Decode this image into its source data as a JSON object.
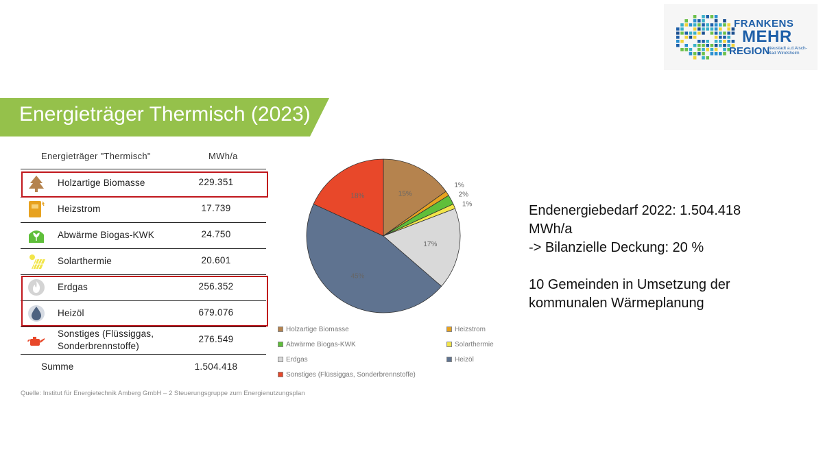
{
  "logo": {
    "line1": "FRANKENS",
    "line2": "MEHR",
    "line3": "REGION",
    "sub": "Neustadt a.d.Aisch-Bad Windsheim"
  },
  "title": "Energieträger Thermisch (2023)",
  "table": {
    "headers": [
      "Energieträger \"Thermisch\"",
      "MWh/a"
    ],
    "rows": [
      {
        "icon": "tree-icon",
        "label": "Holzartige Biomasse",
        "value": "229.351",
        "color": "#b5834e"
      },
      {
        "icon": "heating-socket-icon",
        "label": "Heizstrom",
        "value": "17.739",
        "color": "#e7a220"
      },
      {
        "icon": "biogas-plant-icon",
        "label": "Abwärme Biogas-KWK",
        "value": "24.750",
        "color": "#5fbf3a"
      },
      {
        "icon": "solar-panel-icon",
        "label": "Solarthermie",
        "value": "20.601",
        "color": "#f2e54a"
      },
      {
        "icon": "gas-flame-icon",
        "label": "Erdgas",
        "value": "256.352",
        "color": "#c8c8c8"
      },
      {
        "icon": "oil-drop-icon",
        "label": "Heizöl",
        "value": "679.076",
        "color": "#4d6280"
      },
      {
        "icon": "oil-can-icon",
        "label": "Sonstiges (Flüssiggas, Sonderbrennstoffe)",
        "value": "276.549",
        "color": "#e8482a"
      }
    ],
    "sum_label": "Summe",
    "sum_value": "1.504.418"
  },
  "source": "Quelle: Institut für Energietechnik Amberg GmbH – 2 Steuerungsgruppe zum Energienutzungsplan",
  "chart_data": {
    "type": "pie",
    "labels": [
      "Holzartige Biomasse",
      "Heizstrom",
      "Abwärme Biogas-KWK",
      "Solarthermie",
      "Erdgas",
      "Heizöl",
      "Sonstiges (Flüssiggas, Sonderbrennstoffe)"
    ],
    "values": [
      15,
      1,
      2,
      1,
      17,
      45,
      18
    ],
    "value_labels": [
      "15%",
      "1%",
      "2%",
      "1%",
      "17%",
      "45%",
      "18%"
    ],
    "colors": [
      "#b5834e",
      "#e7a220",
      "#5fbf3a",
      "#f2e54a",
      "#d9d9d9",
      "#5f7390",
      "#e8482a"
    ],
    "legend_position": "bottom"
  },
  "side_text": {
    "line1": "Endenergiebedarf 2022:  1.504.418",
    "line2": "MWh/a",
    "line3": "-> Bilanzielle Deckung: 20 %",
    "line4": "10 Gemeinden in Umsetzung der",
    "line5": "kommunalen Wärmeplanung"
  }
}
